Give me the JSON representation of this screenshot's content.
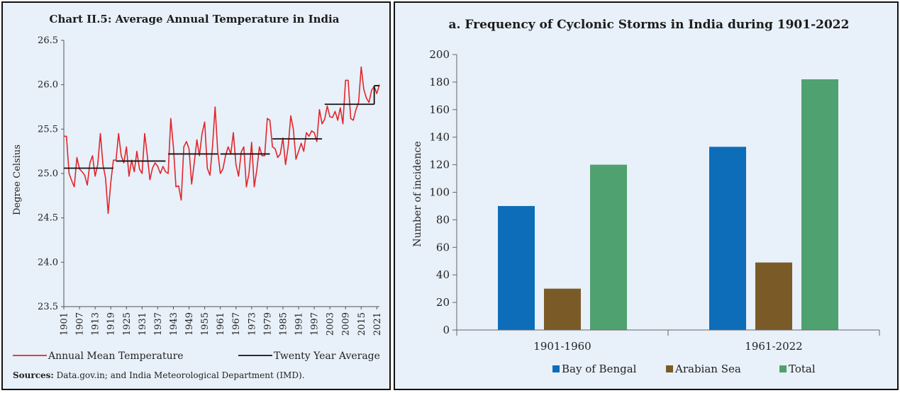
{
  "chart_data": [
    {
      "type": "line",
      "title": "Chart II.5: Average Annual Temperature in India",
      "ylabel": "Degree Celsius",
      "ylim": [
        23.5,
        26.5
      ],
      "yticks": [
        "23.5",
        "24.0",
        "24.5",
        "25.0",
        "25.5",
        "26.0",
        "26.5"
      ],
      "xlim": [
        1901,
        2022
      ],
      "xticks": [
        "1901",
        "1907",
        "1913",
        "1919",
        "1925",
        "1931",
        "1937",
        "1943",
        "1949",
        "1955",
        "1961",
        "1967",
        "1973",
        "1979",
        "1985",
        "1991",
        "1997",
        "2003",
        "2009",
        "2015",
        "2021"
      ],
      "grid": false,
      "legend_placement": "bottom",
      "series": [
        {
          "name": "Annual Mean Temperature",
          "color": "#e0262b",
          "x": [
            1901,
            1902,
            1903,
            1904,
            1905,
            1906,
            1907,
            1908,
            1909,
            1910,
            1911,
            1912,
            1913,
            1914,
            1915,
            1916,
            1917,
            1918,
            1919,
            1920,
            1921,
            1922,
            1923,
            1924,
            1925,
            1926,
            1927,
            1928,
            1929,
            1930,
            1931,
            1932,
            1933,
            1934,
            1935,
            1936,
            1937,
            1938,
            1939,
            1940,
            1941,
            1942,
            1943,
            1944,
            1945,
            1946,
            1947,
            1948,
            1949,
            1950,
            1951,
            1952,
            1953,
            1954,
            1955,
            1956,
            1957,
            1958,
            1959,
            1960,
            1961,
            1962,
            1963,
            1964,
            1965,
            1966,
            1967,
            1968,
            1969,
            1970,
            1971,
            1972,
            1973,
            1974,
            1975,
            1976,
            1977,
            1978,
            1979,
            1980,
            1981,
            1982,
            1983,
            1984,
            1985,
            1986,
            1987,
            1988,
            1989,
            1990,
            1991,
            1992,
            1993,
            1994,
            1995,
            1996,
            1997,
            1998,
            1999,
            2000,
            2001,
            2002,
            2003,
            2004,
            2005,
            2006,
            2007,
            2008,
            2009,
            2010,
            2011,
            2012,
            2013,
            2014,
            2015,
            2016,
            2017,
            2018,
            2019,
            2020,
            2021,
            2022
          ],
          "y": [
            25.42,
            25.42,
            25.0,
            24.92,
            24.85,
            25.18,
            25.05,
            25.02,
            24.98,
            24.87,
            25.12,
            25.2,
            24.97,
            25.1,
            25.45,
            25.1,
            24.95,
            24.55,
            24.9,
            25.15,
            25.15,
            25.45,
            25.2,
            25.12,
            25.3,
            24.97,
            25.15,
            25.02,
            25.25,
            25.05,
            25.0,
            25.45,
            25.2,
            24.93,
            25.06,
            25.12,
            25.08,
            25.0,
            25.08,
            25.02,
            25.0,
            25.62,
            25.3,
            24.85,
            24.86,
            24.7,
            25.3,
            25.36,
            25.28,
            24.88,
            25.12,
            25.38,
            25.2,
            25.45,
            25.58,
            25.06,
            24.98,
            25.3,
            25.75,
            25.25,
            25.0,
            25.05,
            25.2,
            25.3,
            25.22,
            25.46,
            25.1,
            24.97,
            25.24,
            25.3,
            24.85,
            25.0,
            25.35,
            24.85,
            25.04,
            25.3,
            25.2,
            25.2,
            25.62,
            25.6,
            25.3,
            25.28,
            25.18,
            25.22,
            25.4,
            25.1,
            25.3,
            25.65,
            25.5,
            25.16,
            25.25,
            25.34,
            25.25,
            25.46,
            25.42,
            25.48,
            25.46,
            25.36,
            25.72,
            25.56,
            25.61,
            25.76,
            25.64,
            25.63,
            25.7,
            25.6,
            25.74,
            25.56,
            26.05,
            26.05,
            25.62,
            25.6,
            25.72,
            25.8,
            26.2,
            25.95,
            25.85,
            25.8,
            25.94,
            25.98,
            25.9,
            26.0
          ]
        },
        {
          "name": "Twenty Year Average",
          "color": "#111111",
          "segments": [
            {
              "from": 1901,
              "to": 1920,
              "value": 25.06
            },
            {
              "from": 1921,
              "to": 1940,
              "value": 25.14
            },
            {
              "from": 1941,
              "to": 1960,
              "value": 25.22
            },
            {
              "from": 1961,
              "to": 1980,
              "value": 25.22
            },
            {
              "from": 1981,
              "to": 2000,
              "value": 25.39
            },
            {
              "from": 2001,
              "to": 2020,
              "value": 25.78
            },
            {
              "from": 2020,
              "to": 2022,
              "value": 25.99
            }
          ]
        }
      ],
      "source_label": "Sources:",
      "source_text": " Data.gov.in; and India Meteorological Department (IMD)."
    },
    {
      "type": "bar",
      "title": "a. Frequency of Cyclonic Storms in India during 1901-2022",
      "ylabel": "Number of incidence",
      "ylim": [
        0,
        200
      ],
      "yticks": [
        "0",
        "20",
        "40",
        "60",
        "80",
        "100",
        "120",
        "140",
        "160",
        "180",
        "200"
      ],
      "categories": [
        "1901-1960",
        "1961-2022"
      ],
      "grid": false,
      "legend_placement": "bottom",
      "series": [
        {
          "name": "Bay of Bengal",
          "color": "#0e6db8",
          "values": [
            90,
            133
          ]
        },
        {
          "name": "Arabian Sea",
          "color": "#7a5b28",
          "values": [
            30,
            49
          ]
        },
        {
          "name": "Total",
          "color": "#4fa170",
          "values": [
            120,
            182
          ]
        }
      ]
    }
  ]
}
